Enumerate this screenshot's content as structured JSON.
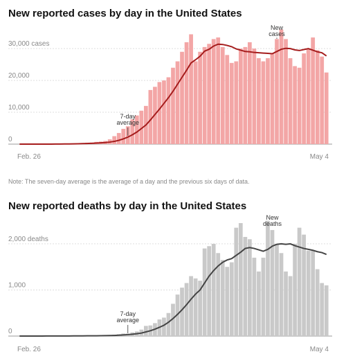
{
  "chart_data": [
    {
      "type": "bar",
      "title": "New reported cases by day in the United States",
      "categories": [
        "Feb. 26",
        null,
        null,
        null,
        null,
        null,
        null,
        null,
        null,
        null,
        null,
        null,
        null,
        null,
        null,
        null,
        null,
        null,
        null,
        null,
        null,
        null,
        null,
        null,
        null,
        null,
        null,
        null,
        null,
        null,
        null,
        null,
        null,
        null,
        null,
        null,
        null,
        null,
        null,
        null,
        null,
        null,
        null,
        null,
        null,
        null,
        null,
        null,
        null,
        null,
        null,
        null,
        null,
        null,
        null,
        null,
        null,
        null,
        null,
        null,
        null,
        null,
        null,
        null,
        null,
        null,
        null,
        null,
        "May 4"
      ],
      "ylim": [
        0,
        37000
      ],
      "yticks": [
        0,
        {
          "value": 10000,
          "label": "10,000"
        },
        {
          "value": 20000,
          "label": "20,000"
        },
        {
          "value": 30000,
          "label": "30,000 cases"
        }
      ],
      "grid": true,
      "series": [
        {
          "name": "New cases",
          "type": "bar",
          "color": "#f3a6a6",
          "values": [
            0,
            1,
            1,
            6,
            8,
            20,
            25,
            30,
            60,
            70,
            100,
            120,
            180,
            250,
            300,
            450,
            500,
            700,
            800,
            1000,
            1500,
            2500,
            3500,
            4800,
            5600,
            7800,
            9000,
            10500,
            12000,
            17000,
            18000,
            19500,
            20000,
            21000,
            24000,
            26000,
            29000,
            32000,
            34500,
            26000,
            29000,
            30500,
            31500,
            33000,
            33500,
            30500,
            28000,
            25500,
            26000,
            30000,
            30500,
            32000,
            30000,
            27000,
            26000,
            27000,
            28500,
            33000,
            36000,
            33000,
            27000,
            24500,
            24000,
            28500,
            30000,
            33500,
            29500,
            27500,
            22500
          ]
        },
        {
          "name": "7-day average",
          "type": "line",
          "color": "#a51c1c",
          "values": [
            0,
            0,
            1,
            1,
            2,
            5,
            8,
            12,
            20,
            30,
            45,
            60,
            85,
            115,
            155,
            200,
            255,
            330,
            400,
            500,
            640,
            860,
            1200,
            1650,
            2200,
            2950,
            3800,
            4900,
            6000,
            7600,
            9300,
            11000,
            12800,
            14600,
            16600,
            18800,
            21000,
            23200,
            25500,
            26500,
            27600,
            29200,
            29800,
            30800,
            31400,
            31300,
            31000,
            30600,
            29900,
            29500,
            29100,
            29000,
            28800,
            28700,
            28600,
            28500,
            28400,
            29100,
            29800,
            30100,
            30000,
            29600,
            29400,
            29700,
            30000,
            29500,
            29000,
            28700,
            27700
          ]
        }
      ]
    },
    {
      "type": "bar",
      "title": "New reported deaths by day in the United States",
      "categories": [
        "Feb. 26",
        null,
        null,
        null,
        null,
        null,
        null,
        null,
        null,
        null,
        null,
        null,
        null,
        null,
        null,
        null,
        null,
        null,
        null,
        null,
        null,
        null,
        null,
        null,
        null,
        null,
        null,
        null,
        null,
        null,
        null,
        null,
        null,
        null,
        null,
        null,
        null,
        null,
        null,
        null,
        null,
        null,
        null,
        null,
        null,
        null,
        null,
        null,
        null,
        null,
        null,
        null,
        null,
        null,
        null,
        null,
        null,
        null,
        null,
        null,
        null,
        null,
        null,
        null,
        null,
        null,
        null,
        null,
        "May 4"
      ],
      "ylim": [
        0,
        2600
      ],
      "yticks": [
        0,
        {
          "value": 1000,
          "label": "1,000"
        },
        {
          "value": 2000,
          "label": "2,000 deaths"
        }
      ],
      "grid": true,
      "series": [
        {
          "name": "New deaths",
          "type": "bar",
          "color": "#c9c9c9",
          "values": [
            0,
            0,
            0,
            1,
            0,
            1,
            4,
            1,
            1,
            1,
            3,
            4,
            3,
            4,
            7,
            9,
            7,
            8,
            12,
            17,
            20,
            30,
            40,
            55,
            55,
            80,
            100,
            140,
            220,
            230,
            280,
            360,
            400,
            500,
            700,
            900,
            1050,
            1150,
            1300,
            1250,
            1200,
            1900,
            1950,
            2000,
            1800,
            1650,
            1500,
            1600,
            2350,
            2450,
            2150,
            2100,
            1700,
            1400,
            1700,
            2500,
            2300,
            2000,
            1800,
            1400,
            1300,
            2000,
            2350,
            2200,
            1850,
            1850,
            1450,
            1150,
            1100
          ]
        },
        {
          "name": "7-day average",
          "type": "line",
          "color": "#444444",
          "values": [
            0,
            0,
            0,
            0,
            0,
            0,
            1,
            1,
            1,
            2,
            2,
            2,
            3,
            3,
            4,
            5,
            5,
            6,
            7,
            9,
            11,
            14,
            18,
            25,
            31,
            40,
            50,
            65,
            90,
            115,
            150,
            190,
            235,
            300,
            380,
            470,
            570,
            680,
            800,
            910,
            1000,
            1150,
            1300,
            1420,
            1520,
            1600,
            1650,
            1680,
            1750,
            1820,
            1900,
            1920,
            1900,
            1870,
            1840,
            1880,
            1950,
            1990,
            2000,
            1990,
            2000,
            1960,
            1930,
            1900,
            1880,
            1860,
            1830,
            1810,
            1770
          ]
        }
      ]
    }
  ],
  "note": "Note: The seven-day average is the average of a day and the previous six days of data."
}
